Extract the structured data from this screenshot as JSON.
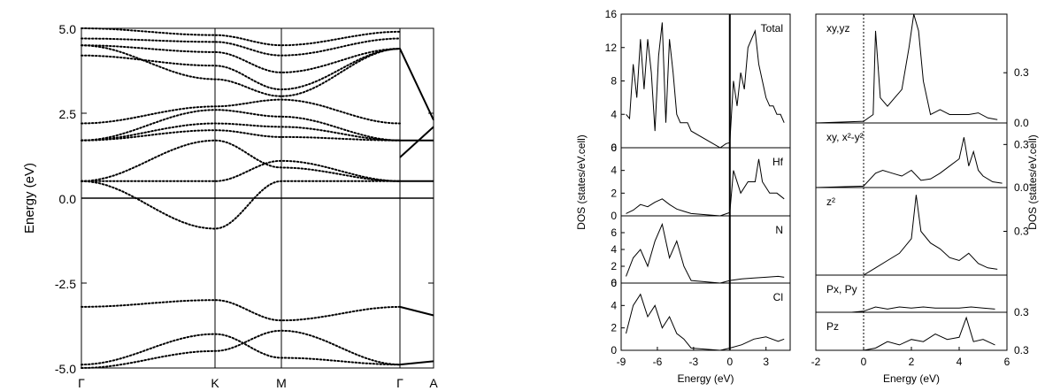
{
  "chart_data": [
    {
      "type": "scatter",
      "panel": "band-structure",
      "ylabel": "Energy (eV)",
      "ylim": [
        -5.0,
        5.0
      ],
      "y_ticks": [
        "5.0",
        "2.5",
        "0.0",
        "-2.5",
        "-5.0"
      ],
      "x_ticks": [
        "Γ",
        "K",
        "M",
        "Γ",
        "A"
      ],
      "bands": [
        {
          "name": "",
          "x": [
            "Γ",
            "K",
            "M",
            "Γ"
          ],
          "y": [
            -5.0,
            -4.5,
            -3.9,
            -4.9
          ]
        },
        {
          "name": "",
          "x": [
            "Γ",
            "K",
            "M",
            "Γ"
          ],
          "y": [
            -4.9,
            -4.0,
            -4.7,
            -4.9
          ]
        },
        {
          "name": "",
          "x": [
            "Γ",
            "K",
            "M",
            "Γ"
          ],
          "y": [
            -3.2,
            -3.0,
            -3.6,
            -3.2
          ]
        },
        {
          "name": "",
          "x": [
            "Γ",
            "K",
            "M",
            "Γ"
          ],
          "y": [
            0.5,
            -0.9,
            0.5,
            0.5
          ]
        },
        {
          "name": "",
          "x": [
            "Γ",
            "K",
            "M",
            "Γ"
          ],
          "y": [
            0.5,
            0.5,
            1.1,
            0.5
          ]
        },
        {
          "name": "",
          "x": [
            "Γ",
            "K",
            "M",
            "Γ"
          ],
          "y": [
            0.5,
            1.7,
            0.9,
            0.5
          ]
        },
        {
          "name": "",
          "x": [
            "Γ",
            "K",
            "M",
            "Γ"
          ],
          "y": [
            1.7,
            2.0,
            1.8,
            1.7
          ]
        },
        {
          "name": "",
          "x": [
            "Γ",
            "K",
            "M",
            "Γ"
          ],
          "y": [
            1.7,
            2.2,
            2.1,
            1.7
          ]
        },
        {
          "name": "",
          "x": [
            "Γ",
            "K",
            "M",
            "Γ"
          ],
          "y": [
            1.7,
            2.6,
            2.4,
            1.7
          ]
        },
        {
          "name": "",
          "x": [
            "Γ",
            "K",
            "M",
            "Γ"
          ],
          "y": [
            2.2,
            2.7,
            2.9,
            2.2
          ]
        },
        {
          "name": "",
          "x": [
            "Γ",
            "K",
            "M",
            "Γ"
          ],
          "y": [
            4.5,
            3.5,
            3.0,
            4.4
          ]
        },
        {
          "name": "",
          "x": [
            "Γ",
            "K",
            "M",
            "Γ"
          ],
          "y": [
            4.2,
            3.9,
            3.2,
            4.4
          ]
        },
        {
          "name": "",
          "x": [
            "Γ",
            "K",
            "M",
            "Γ"
          ],
          "y": [
            4.5,
            4.3,
            3.7,
            4.4
          ]
        },
        {
          "name": "",
          "x": [
            "Γ",
            "K",
            "M",
            "Γ"
          ],
          "y": [
            4.7,
            4.6,
            4.2,
            4.7
          ]
        },
        {
          "name": "",
          "x": [
            "Γ",
            "K",
            "M",
            "Γ"
          ],
          "y": [
            5.0,
            4.8,
            4.5,
            4.9
          ]
        }
      ],
      "ga_bands_solid": [
        {
          "y_gamma": -4.9,
          "y_A": -4.8
        },
        {
          "y_gamma": -3.2,
          "y_A": -3.45
        },
        {
          "y_gamma": 0.5,
          "y_A": 0.5
        },
        {
          "y_gamma": 1.2,
          "y_A": 2.1
        },
        {
          "y_gamma": 1.7,
          "y_A": 1.7
        },
        {
          "y_gamma": 4.4,
          "y_A": 2.3
        }
      ]
    },
    {
      "type": "line",
      "panel": "total-dos",
      "ylabel": "DOS (states/eV.cell)",
      "xlabel": "Energy (eV)",
      "xlim": [
        -9,
        5
      ],
      "x_ticks": [
        "-9",
        "-6",
        "-3",
        "0",
        "3"
      ],
      "subpanels": [
        {
          "name": "Total",
          "ylim": [
            0,
            16
          ],
          "y_ticks": [
            "0",
            "4",
            "8",
            "12",
            "16"
          ],
          "x": [
            -8.6,
            -8.3,
            -8.0,
            -7.7,
            -7.4,
            -7.1,
            -6.8,
            -6.5,
            -6.2,
            -5.9,
            -5.6,
            -5.3,
            -5.0,
            -4.7,
            -4.4,
            -4.1,
            -3.8,
            -3.5,
            -3.2,
            -0.8,
            -0.3,
            0.0,
            0.3,
            0.6,
            0.9,
            1.2,
            1.5,
            1.8,
            2.1,
            2.4,
            2.7,
            3.0,
            3.3,
            3.6,
            3.9,
            4.2,
            4.5
          ],
          "y": [
            4,
            3.5,
            10,
            6,
            13,
            7,
            13,
            9,
            2,
            11,
            15,
            3,
            13,
            9,
            4,
            3,
            3,
            3,
            2,
            0,
            0.5,
            0.6,
            8,
            5,
            9,
            7,
            12,
            13,
            14,
            10,
            8,
            6,
            5,
            5,
            4,
            4,
            3
          ]
        },
        {
          "name": "Hf",
          "ylim": [
            0,
            6
          ],
          "y_ticks": [
            "0",
            "2",
            "4",
            "6"
          ],
          "x": [
            -8.6,
            -8.0,
            -7.4,
            -6.8,
            -6.2,
            -5.6,
            -5.0,
            -4.4,
            -3.8,
            -3.2,
            -0.8,
            0.0,
            0.3,
            0.9,
            1.5,
            2.1,
            2.4,
            2.7,
            3.3,
            3.9,
            4.5
          ],
          "y": [
            0.2,
            0.5,
            1.0,
            0.8,
            1.2,
            1.5,
            1.0,
            0.6,
            0.4,
            0.2,
            0,
            0.3,
            4,
            2,
            3,
            3,
            5,
            3,
            2,
            2,
            1.5
          ]
        },
        {
          "name": "N",
          "ylim": [
            0,
            8
          ],
          "y_ticks": [
            "0",
            "2",
            "4",
            "6"
          ],
          "x": [
            -8.6,
            -8.0,
            -7.4,
            -6.8,
            -6.2,
            -5.6,
            -5.0,
            -4.4,
            -3.8,
            -3.2,
            -0.8,
            0.0,
            1.0,
            2.0,
            3.0,
            4.0,
            4.5
          ],
          "y": [
            0.8,
            3,
            4,
            2,
            5,
            7,
            3,
            5,
            2,
            0.3,
            0,
            0.3,
            0.5,
            0.6,
            0.7,
            0.8,
            0.7
          ]
        },
        {
          "name": "Cl",
          "ylim": [
            0,
            6
          ],
          "y_ticks": [
            "0",
            "2",
            "4",
            "6"
          ],
          "x": [
            -8.6,
            -8.0,
            -7.4,
            -6.8,
            -6.2,
            -5.6,
            -5.0,
            -4.4,
            -3.8,
            -3.2,
            -0.8,
            0.0,
            1.0,
            2.0,
            3.0,
            4.0,
            4.5
          ],
          "y": [
            1.5,
            4,
            5,
            3,
            4,
            2,
            3,
            1.5,
            1.0,
            0.2,
            0,
            0.2,
            0.5,
            1.0,
            1.2,
            0.8,
            1.0
          ]
        }
      ]
    },
    {
      "type": "line",
      "panel": "projected-dos",
      "ylabel": "DOS (states/eV.cell)",
      "xlabel": "Energy (eV)",
      "xlim": [
        -2,
        6
      ],
      "x_ticks": [
        "-2",
        "0",
        "2",
        "4",
        "6"
      ],
      "subpanels": [
        {
          "name": "xy,yz",
          "y_ticks": [
            "0.0",
            "0.3"
          ],
          "x": [
            -2,
            0,
            0.4,
            0.5,
            0.7,
            1.0,
            1.3,
            1.6,
            1.9,
            2.1,
            2.3,
            2.5,
            2.8,
            3.2,
            3.6,
            4.0,
            4.4,
            4.8,
            5.2,
            5.6
          ],
          "y": [
            0,
            0.01,
            0.05,
            0.55,
            0.15,
            0.1,
            0.15,
            0.2,
            0.45,
            0.65,
            0.55,
            0.25,
            0.05,
            0.08,
            0.05,
            0.05,
            0.05,
            0.06,
            0.03,
            0.02
          ]
        },
        {
          "name": "xy, x²-y²",
          "y_ticks": [
            "0.0",
            "0.3"
          ],
          "x": [
            -2,
            0,
            0.5,
            0.8,
            1.2,
            1.6,
            2.0,
            2.4,
            2.8,
            3.2,
            3.6,
            4.0,
            4.2,
            4.4,
            4.6,
            4.8,
            5.0,
            5.4,
            5.8
          ],
          "y": [
            0,
            0.01,
            0.1,
            0.12,
            0.1,
            0.08,
            0.12,
            0.05,
            0.06,
            0.1,
            0.15,
            0.2,
            0.35,
            0.15,
            0.25,
            0.12,
            0.08,
            0.04,
            0.03
          ]
        },
        {
          "name": "z²",
          "y_ticks": [
            "0.3"
          ],
          "x": [
            -2,
            0,
            0.5,
            1.0,
            1.5,
            2.0,
            2.2,
            2.4,
            2.8,
            3.2,
            3.6,
            4.0,
            4.4,
            4.8,
            5.2,
            5.6
          ],
          "y": [
            0,
            0,
            0.05,
            0.1,
            0.15,
            0.25,
            0.55,
            0.3,
            0.22,
            0.18,
            0.12,
            0.1,
            0.15,
            0.08,
            0.05,
            0.04
          ]
        },
        {
          "name": "Px, Py",
          "y_ticks": [
            "0.3"
          ],
          "x": [
            -2,
            -0.5,
            0,
            0.5,
            1.0,
            1.5,
            2.0,
            2.5,
            3.0,
            3.5,
            4.0,
            4.5,
            5.0,
            5.5
          ],
          "y": [
            0,
            0,
            0.01,
            0.05,
            0.03,
            0.05,
            0.04,
            0.05,
            0.04,
            0.04,
            0.04,
            0.05,
            0.04,
            0.03
          ]
        },
        {
          "name": "Pz",
          "y_ticks": [
            "0.3"
          ],
          "x": [
            -2,
            0,
            0.5,
            1.0,
            1.5,
            2.0,
            2.5,
            3.0,
            3.5,
            4.0,
            4.3,
            4.6,
            5.0,
            5.5
          ],
          "y": [
            0,
            0,
            0.02,
            0.08,
            0.05,
            0.1,
            0.08,
            0.15,
            0.1,
            0.12,
            0.3,
            0.08,
            0.1,
            0.05
          ]
        }
      ]
    }
  ]
}
